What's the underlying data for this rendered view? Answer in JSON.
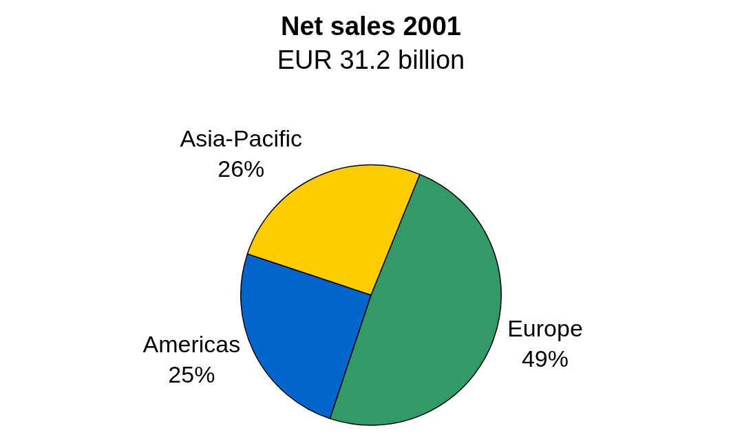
{
  "chart_data": {
    "type": "pie",
    "title": "Net sales 2001",
    "subtitle": "EUR 31.2 billion",
    "categories": [
      "Europe",
      "Americas",
      "Asia-Pacific"
    ],
    "values": [
      49,
      25,
      26
    ],
    "value_labels": [
      "49%",
      "25%",
      "26%"
    ],
    "colors": [
      "#339966",
      "#0066cc",
      "#ffcc00"
    ]
  }
}
